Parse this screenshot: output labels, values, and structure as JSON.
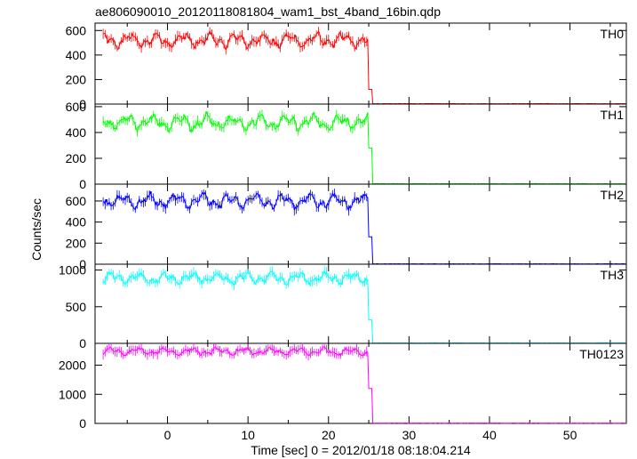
{
  "title": "ae806090010_20120118081804_wam1_bst_4band_16bin.qdp",
  "chart_data": {
    "type": "line",
    "title": "ae806090010_20120118081804_wam1_bst_4band_16bin.qdp",
    "xlabel": "Time [sec] 0 = 2012/01/18 08:18:04.214",
    "ylabel": "Counts/sec",
    "xlim": [
      -9,
      57
    ],
    "x_ticks": [
      0,
      10,
      20,
      30,
      40,
      50
    ],
    "drop_time": 25.0,
    "grid": false,
    "legend": "none",
    "panels": [
      {
        "label": "TH0",
        "color": "#ff0000",
        "ylim": [
          0,
          660
        ],
        "y_ticks": [
          0,
          200,
          400,
          600
        ],
        "pre_mean": 520,
        "pre_amplitude": 70,
        "post_level": 3,
        "step_level": 120
      },
      {
        "label": "TH1",
        "color": "#00ff00",
        "ylim": [
          0,
          620
        ],
        "y_ticks": [
          0,
          200,
          400,
          600
        ],
        "pre_mean": 480,
        "pre_amplitude": 70,
        "post_level": 3,
        "step_level": 280
      },
      {
        "label": "TH2",
        "color": "#0000ff",
        "ylim": [
          0,
          760
        ],
        "y_ticks": [
          0,
          200,
          400,
          600
        ],
        "pre_mean": 600,
        "pre_amplitude": 80,
        "post_level": 3,
        "step_level": 260
      },
      {
        "label": "TH3",
        "color": "#00ffff",
        "ylim": [
          0,
          1080
        ],
        "y_ticks": [
          0,
          500,
          1000
        ],
        "pre_mean": 890,
        "pre_amplitude": 90,
        "post_level": 5,
        "step_level": 320
      },
      {
        "label": "TH0123",
        "color": "#ff00ff",
        "ylim": [
          0,
          2750
        ],
        "y_ticks": [
          0,
          1000,
          2000
        ],
        "pre_mean": 2470,
        "pre_amplitude": 150,
        "post_level": 12,
        "step_level": 1200
      }
    ]
  }
}
